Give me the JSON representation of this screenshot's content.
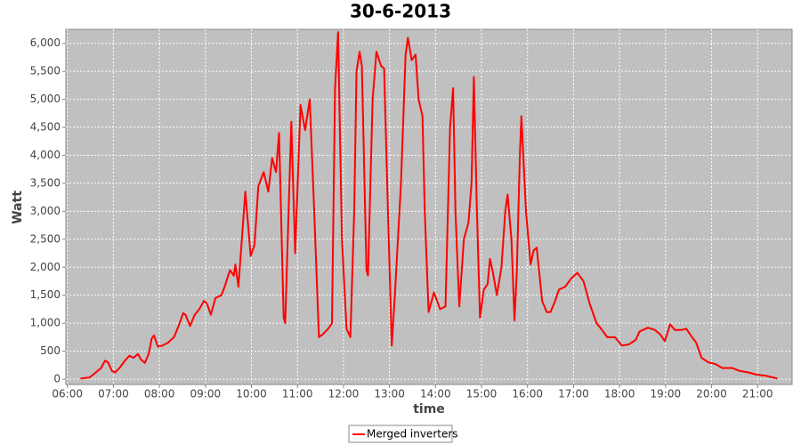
{
  "chart_data": {
    "type": "line",
    "title": "30-6-2013",
    "xlabel": "time",
    "ylabel": "Watt",
    "x": [
      377,
      389,
      397,
      404,
      409,
      413,
      418,
      422,
      428,
      435,
      441,
      446,
      452,
      456,
      461,
      466,
      470,
      473,
      478,
      484,
      491,
      499,
      505,
      511,
      514,
      520,
      526,
      532,
      538,
      542,
      547,
      553,
      561,
      565,
      572,
      577,
      579,
      583,
      592,
      599,
      604,
      609,
      616,
      622,
      627,
      632,
      636,
      642,
      644,
      652,
      657,
      664,
      670,
      676,
      681,
      688,
      693,
      700,
      705,
      709,
      713,
      715,
      718,
      724,
      729,
      734,
      737,
      741,
      744,
      750,
      752,
      758,
      763,
      769,
      773,
      778,
      783,
      787,
      795,
      801,
      804,
      809,
      814,
      818,
      823,
      826,
      831,
      838,
      846,
      853,
      859,
      863,
      866,
      871,
      877,
      883,
      887,
      890,
      894,
      898,
      903,
      908,
      911,
      915,
      920,
      926,
      931,
      934,
      939,
      943,
      946,
      950,
      952,
      958,
      964,
      968,
      972,
      979,
      985,
      990,
      996,
      1001,
      1009,
      1017,
      1025,
      1033,
      1041,
      1050,
      1056,
      1064,
      1074,
      1083,
      1092,
      1101,
      1106,
      1117,
      1126,
      1133,
      1139,
      1146,
      1152,
      1161,
      1167,
      1172,
      1180,
      1187,
      1196,
      1205,
      1214,
      1227,
      1236,
      1248,
      1259,
      1271,
      1280,
      1286
    ],
    "series": [
      {
        "name": "Merged inverters",
        "color": "#ff0000",
        "values": [
          10,
          30,
          120,
          200,
          330,
          300,
          150,
          120,
          200,
          330,
          420,
          380,
          450,
          350,
          290,
          450,
          730,
          780,
          580,
          600,
          650,
          750,
          950,
          1180,
          1150,
          950,
          1150,
          1250,
          1400,
          1350,
          1150,
          1450,
          1500,
          1650,
          1950,
          1850,
          2050,
          1650,
          3350,
          2200,
          2400,
          3450,
          3700,
          3350,
          3950,
          3700,
          4400,
          1100,
          1000,
          4600,
          2250,
          4900,
          4450,
          5000,
          3300,
          750,
          800,
          900,
          1000,
          5200,
          6200,
          4700,
          2500,
          900,
          750,
          3000,
          5500,
          5850,
          5600,
          1950,
          1850,
          5000,
          5850,
          5600,
          5550,
          3000,
          600,
          1500,
          3500,
          5800,
          6100,
          5700,
          5800,
          5000,
          4700,
          3000,
          1200,
          1550,
          1250,
          1300,
          4500,
          5200,
          3000,
          1300,
          2500,
          2800,
          3500,
          5400,
          3000,
          1100,
          1600,
          1700,
          2150,
          1900,
          1500,
          2000,
          3000,
          3300,
          2500,
          1050,
          1900,
          4000,
          4700,
          3000,
          2050,
          2300,
          2350,
          1400,
          1200,
          1200,
          1400,
          1600,
          1650,
          1800,
          1900,
          1750,
          1350,
          1000,
          900,
          750,
          750,
          600,
          620,
          700,
          850,
          920,
          880,
          800,
          680,
          980,
          880,
          880,
          900,
          800,
          650,
          380,
          300,
          270,
          200,
          200,
          150,
          120,
          80,
          60,
          30,
          10
        ]
      }
    ],
    "xlim": [
      358,
      1305
    ],
    "ylim": [
      -95,
      6250
    ],
    "xticks": [
      {
        "value": 360,
        "label": "06:00"
      },
      {
        "value": 420,
        "label": "07:00"
      },
      {
        "value": 480,
        "label": "08:00"
      },
      {
        "value": 540,
        "label": "09:00"
      },
      {
        "value": 600,
        "label": "10:00"
      },
      {
        "value": 660,
        "label": "11:00"
      },
      {
        "value": 720,
        "label": "12:00"
      },
      {
        "value": 780,
        "label": "13:00"
      },
      {
        "value": 840,
        "label": "14:00"
      },
      {
        "value": 900,
        "label": "15:00"
      },
      {
        "value": 960,
        "label": "16:00"
      },
      {
        "value": 1020,
        "label": "17:00"
      },
      {
        "value": 1080,
        "label": "18:00"
      },
      {
        "value": 1140,
        "label": "19:00"
      },
      {
        "value": 1200,
        "label": "20:00"
      },
      {
        "value": 1260,
        "label": "21:00"
      }
    ],
    "yticks": [
      0,
      500,
      {
        "value": 1000,
        "label": "1,000"
      },
      {
        "value": 1500,
        "label": "1,500"
      },
      {
        "value": 2000,
        "label": "2,000"
      },
      {
        "value": 2500,
        "label": "2,500"
      },
      {
        "value": 3000,
        "label": "3,000"
      },
      {
        "value": 3500,
        "label": "3,500"
      },
      {
        "value": 4000,
        "label": "4,000"
      },
      {
        "value": 4500,
        "label": "4,500"
      },
      {
        "value": 5000,
        "label": "5,000"
      },
      {
        "value": 5500,
        "label": "5,500"
      },
      {
        "value": 6000,
        "label": "6,000"
      }
    ],
    "grid": true,
    "legend": "bottom"
  }
}
